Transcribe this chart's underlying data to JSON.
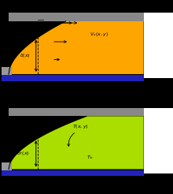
{
  "background_color": "#000000",
  "panel1": {
    "fill_color": "#FFA500",
    "plate_color": "#2222BB",
    "white_box_color": "#FFFFFF",
    "gray_shade": "#999999",
    "top_gray": "#888888"
  },
  "panel2": {
    "fill_color": "#AADD00",
    "plate_color": "#2222BB",
    "white_box_color": "#FFFFFF",
    "gray_shade": "#999999",
    "top_gray": "#888888"
  }
}
